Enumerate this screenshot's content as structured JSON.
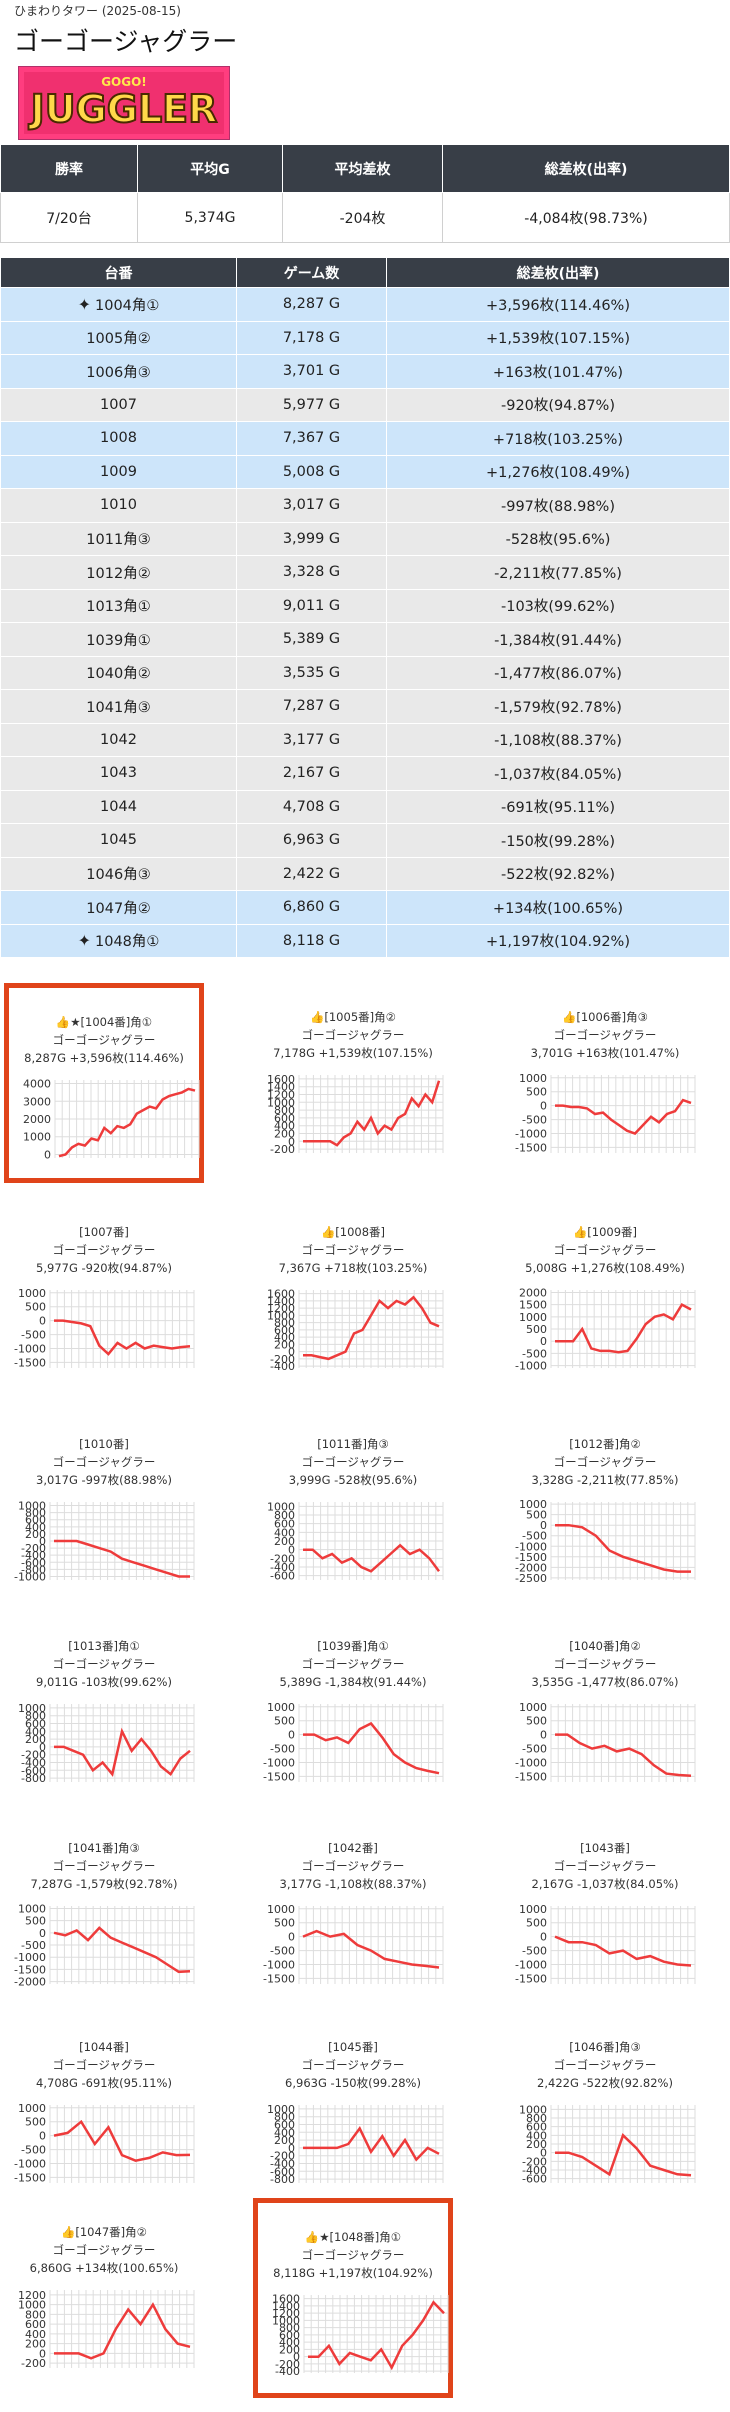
{
  "header": {
    "store_date": "ひまわりタワー (2025-08-15)",
    "title": "ゴーゴージャグラー",
    "logo_text": "JUGGLER",
    "logo_sub": "GOGO!"
  },
  "summary": {
    "headers": [
      "勝率",
      "平均G",
      "平均差枚",
      "総差枚(出率)"
    ],
    "values": [
      "7/20台",
      "5,374G",
      "-204枚",
      "-4,084枚(98.73%)"
    ]
  },
  "machines": {
    "headers": [
      "台番",
      "ゲーム数",
      "総差枚(出率)"
    ],
    "rows": [
      {
        "no": "1004角①",
        "games": "8,287 G",
        "diff": "+3,596枚(114.46%)",
        "plus": true,
        "star": true
      },
      {
        "no": "1005角②",
        "games": "7,178 G",
        "diff": "+1,539枚(107.15%)",
        "plus": true,
        "star": false
      },
      {
        "no": "1006角③",
        "games": "3,701 G",
        "diff": "+163枚(101.47%)",
        "plus": true,
        "star": false
      },
      {
        "no": "1007",
        "games": "5,977 G",
        "diff": "-920枚(94.87%)",
        "plus": false,
        "star": false
      },
      {
        "no": "1008",
        "games": "7,367 G",
        "diff": "+718枚(103.25%)",
        "plus": true,
        "star": false
      },
      {
        "no": "1009",
        "games": "5,008 G",
        "diff": "+1,276枚(108.49%)",
        "plus": true,
        "star": false
      },
      {
        "no": "1010",
        "games": "3,017 G",
        "diff": "-997枚(88.98%)",
        "plus": false,
        "star": false
      },
      {
        "no": "1011角③",
        "games": "3,999 G",
        "diff": "-528枚(95.6%)",
        "plus": false,
        "star": false
      },
      {
        "no": "1012角②",
        "games": "3,328 G",
        "diff": "-2,211枚(77.85%)",
        "plus": false,
        "star": false
      },
      {
        "no": "1013角①",
        "games": "9,011 G",
        "diff": "-103枚(99.62%)",
        "plus": false,
        "star": false
      },
      {
        "no": "1039角①",
        "games": "5,389 G",
        "diff": "-1,384枚(91.44%)",
        "plus": false,
        "star": false
      },
      {
        "no": "1040角②",
        "games": "3,535 G",
        "diff": "-1,477枚(86.07%)",
        "plus": false,
        "star": false
      },
      {
        "no": "1041角③",
        "games": "7,287 G",
        "diff": "-1,579枚(92.78%)",
        "plus": false,
        "star": false
      },
      {
        "no": "1042",
        "games": "3,177 G",
        "diff": "-1,108枚(88.37%)",
        "plus": false,
        "star": false
      },
      {
        "no": "1043",
        "games": "2,167 G",
        "diff": "-1,037枚(84.05%)",
        "plus": false,
        "star": false
      },
      {
        "no": "1044",
        "games": "4,708 G",
        "diff": "-691枚(95.11%)",
        "plus": false,
        "star": false
      },
      {
        "no": "1045",
        "games": "6,963 G",
        "diff": "-150枚(99.28%)",
        "plus": false,
        "star": false
      },
      {
        "no": "1046角③",
        "games": "2,422 G",
        "diff": "-522枚(92.82%)",
        "plus": false,
        "star": false
      },
      {
        "no": "1047角②",
        "games": "6,860 G",
        "diff": "+134枚(100.65%)",
        "plus": true,
        "star": false
      },
      {
        "no": "1048角①",
        "games": "8,118 G",
        "diff": "+1,197枚(104.92%)",
        "plus": true,
        "star": true
      }
    ]
  },
  "colors": {
    "header_bg": "#383e47",
    "plus_row": "#cde5fa",
    "minus_row": "#e9e9e9",
    "line": "#ee3b3b",
    "highlight": "#e0441a"
  },
  "chart_data": [
    {
      "type": "line",
      "title": "👍★[1004番]角①",
      "subtitle": "ゴーゴージャグラー",
      "stats": "8,287G +3,596枚(114.46%)",
      "yticks": [
        "4000",
        "3000",
        "2000",
        "1000",
        "0"
      ],
      "ylim": [
        -200,
        4200
      ],
      "values": [
        -100,
        0,
        400,
        600,
        500,
        900,
        800,
        1500,
        1200,
        1600,
        1500,
        1700,
        2300,
        2500,
        2700,
        2600,
        3100,
        3300,
        3400,
        3500,
        3700,
        3600
      ],
      "highlight": true
    },
    {
      "type": "line",
      "title": "👍[1005番]角②",
      "subtitle": "ゴーゴージャグラー",
      "stats": "7,178G +1,539枚(107.15%)",
      "yticks": [
        "1600",
        "1400",
        "1200",
        "1000",
        "800",
        "600",
        "400",
        "200",
        "0",
        "-200"
      ],
      "ylim": [
        -300,
        1700
      ],
      "values": [
        0,
        0,
        0,
        0,
        0,
        -100,
        100,
        200,
        500,
        300,
        600,
        200,
        400,
        300,
        600,
        700,
        1100,
        900,
        1200,
        1000,
        1550
      ],
      "highlight": false
    },
    {
      "type": "line",
      "title": "👍[1006番]角③",
      "subtitle": "ゴーゴージャグラー",
      "stats": "3,701G +163枚(101.47%)",
      "yticks": [
        "1000",
        "500",
        "0",
        "-500",
        "-1000",
        "-1500"
      ],
      "ylim": [
        -1700,
        1100
      ],
      "values": [
        0,
        0,
        -50,
        -50,
        -100,
        -300,
        -250,
        -500,
        -700,
        -900,
        -1000,
        -700,
        -400,
        -600,
        -300,
        -200,
        200,
        100
      ],
      "highlight": false
    },
    {
      "type": "line",
      "title": "[1007番]",
      "subtitle": "ゴーゴージャグラー",
      "stats": "5,977G -920枚(94.87%)",
      "yticks": [
        "1000",
        "500",
        "0",
        "-500",
        "-1000",
        "-1500"
      ],
      "ylim": [
        -1700,
        1100
      ],
      "values": [
        0,
        0,
        -50,
        -100,
        -200,
        -900,
        -1200,
        -800,
        -1000,
        -800,
        -1000,
        -900,
        -950,
        -1000,
        -950,
        -920
      ],
      "highlight": false
    },
    {
      "type": "line",
      "title": "👍[1008番]",
      "subtitle": "ゴーゴージャグラー",
      "stats": "7,367G +718枚(103.25%)",
      "yticks": [
        "1600",
        "1400",
        "1200",
        "1000",
        "800",
        "600",
        "400",
        "200",
        "0",
        "-200",
        "-400"
      ],
      "ylim": [
        -450,
        1700
      ],
      "values": [
        -100,
        -100,
        -150,
        -200,
        -100,
        0,
        500,
        600,
        1000,
        1400,
        1200,
        1400,
        1300,
        1500,
        1200,
        800,
        700
      ],
      "highlight": false
    },
    {
      "type": "line",
      "title": "👍[1009番]",
      "subtitle": "ゴーゴージャグラー",
      "stats": "5,008G +1,276枚(108.49%)",
      "yticks": [
        "2000",
        "1500",
        "1000",
        "500",
        "0",
        "-500",
        "-1000"
      ],
      "ylim": [
        -1100,
        2100
      ],
      "values": [
        0,
        0,
        0,
        500,
        -300,
        -400,
        -400,
        -450,
        -400,
        100,
        700,
        1000,
        1100,
        900,
        1500,
        1300
      ],
      "highlight": false
    },
    {
      "type": "line",
      "title": "[1010番]",
      "subtitle": "ゴーゴージャグラー",
      "stats": "3,017G -997枚(88.98%)",
      "yticks": [
        "1000",
        "800",
        "600",
        "400",
        "200",
        "0",
        "-200",
        "-400",
        "-600",
        "-800",
        "-1000"
      ],
      "ylim": [
        -1100,
        1100
      ],
      "values": [
        0,
        0,
        0,
        -100,
        -200,
        -300,
        -500,
        -600,
        -700,
        -800,
        -900,
        -1000,
        -1000
      ],
      "highlight": false
    },
    {
      "type": "line",
      "title": "[1011番]角③",
      "subtitle": "ゴーゴージャグラー",
      "stats": "3,999G -528枚(95.6%)",
      "yticks": [
        "1000",
        "800",
        "600",
        "400",
        "200",
        "0",
        "-200",
        "-400",
        "-600"
      ],
      "ylim": [
        -700,
        1100
      ],
      "values": [
        0,
        0,
        -200,
        -100,
        -300,
        -200,
        -400,
        -500,
        -300,
        -100,
        100,
        -100,
        0,
        -200,
        -500
      ],
      "highlight": false
    },
    {
      "type": "line",
      "title": "[1012番]角②",
      "subtitle": "ゴーゴージャグラー",
      "stats": "3,328G -2,211枚(77.85%)",
      "yticks": [
        "1000",
        "500",
        "0",
        "-500",
        "-1000",
        "-1500",
        "-2000",
        "-2500"
      ],
      "ylim": [
        -2600,
        1100
      ],
      "values": [
        0,
        0,
        -100,
        -500,
        -1200,
        -1500,
        -1700,
        -1900,
        -2100,
        -2200,
        -2200
      ],
      "highlight": false
    },
    {
      "type": "line",
      "title": "[1013番]角①",
      "subtitle": "ゴーゴージャグラー",
      "stats": "9,011G -103枚(99.62%)",
      "yticks": [
        "1000",
        "800",
        "600",
        "400",
        "200",
        "0",
        "-200",
        "-400",
        "-600",
        "-800"
      ],
      "ylim": [
        -900,
        1100
      ],
      "values": [
        0,
        0,
        -100,
        -200,
        -600,
        -400,
        -700,
        400,
        -100,
        200,
        -100,
        -500,
        -700,
        -300,
        -100
      ],
      "highlight": false
    },
    {
      "type": "line",
      "title": "[1039番]角①",
      "subtitle": "ゴーゴージャグラー",
      "stats": "5,389G -1,384枚(91.44%)",
      "yticks": [
        "1000",
        "500",
        "0",
        "-500",
        "-1000",
        "-1500"
      ],
      "ylim": [
        -1700,
        1100
      ],
      "values": [
        0,
        0,
        -200,
        -100,
        -300,
        200,
        400,
        -100,
        -700,
        -1000,
        -1200,
        -1300,
        -1384
      ],
      "highlight": false
    },
    {
      "type": "line",
      "title": "[1040番]角②",
      "subtitle": "ゴーゴージャグラー",
      "stats": "3,535G -1,477枚(86.07%)",
      "yticks": [
        "1000",
        "500",
        "0",
        "-500",
        "-1000",
        "-1500"
      ],
      "ylim": [
        -1700,
        1100
      ],
      "values": [
        0,
        0,
        -300,
        -500,
        -400,
        -600,
        -500,
        -700,
        -1100,
        -1400,
        -1450,
        -1477
      ],
      "highlight": false
    },
    {
      "type": "line",
      "title": "[1041番]角③",
      "subtitle": "ゴーゴージャグラー",
      "stats": "7,287G -1,579枚(92.78%)",
      "yticks": [
        "1000",
        "500",
        "0",
        "-500",
        "-1000",
        "-1500",
        "-2000"
      ],
      "ylim": [
        -2100,
        1100
      ],
      "values": [
        0,
        -100,
        100,
        -300,
        200,
        -200,
        -400,
        -600,
        -800,
        -1000,
        -1300,
        -1600,
        -1579
      ],
      "highlight": false
    },
    {
      "type": "line",
      "title": "[1042番]",
      "subtitle": "ゴーゴージャグラー",
      "stats": "3,177G -1,108枚(88.37%)",
      "yticks": [
        "1000",
        "500",
        "0",
        "-500",
        "-1000",
        "-1500"
      ],
      "ylim": [
        -1700,
        1100
      ],
      "values": [
        0,
        200,
        0,
        100,
        -300,
        -500,
        -800,
        -900,
        -1000,
        -1050,
        -1108
      ],
      "highlight": false
    },
    {
      "type": "line",
      "title": "[1043番]",
      "subtitle": "ゴーゴージャグラー",
      "stats": "2,167G -1,037枚(84.05%)",
      "yticks": [
        "1000",
        "500",
        "0",
        "-500",
        "-1000",
        "-1500"
      ],
      "ylim": [
        -1700,
        1100
      ],
      "values": [
        0,
        -200,
        -200,
        -300,
        -600,
        -500,
        -800,
        -700,
        -900,
        -1000,
        -1037
      ],
      "highlight": false
    },
    {
      "type": "line",
      "title": "[1044番]",
      "subtitle": "ゴーゴージャグラー",
      "stats": "4,708G -691枚(95.11%)",
      "yticks": [
        "1000",
        "500",
        "0",
        "-500",
        "-1000",
        "-1500"
      ],
      "ylim": [
        -1700,
        1100
      ],
      "values": [
        0,
        100,
        500,
        -300,
        300,
        -700,
        -900,
        -800,
        -600,
        -700,
        -691
      ],
      "highlight": false
    },
    {
      "type": "line",
      "title": "[1045番]",
      "subtitle": "ゴーゴージャグラー",
      "stats": "6,963G -150枚(99.28%)",
      "yticks": [
        "1000",
        "800",
        "600",
        "400",
        "200",
        "0",
        "-200",
        "-400",
        "-600",
        "-800"
      ],
      "ylim": [
        -900,
        1100
      ],
      "values": [
        0,
        0,
        0,
        0,
        100,
        500,
        -100,
        300,
        -200,
        200,
        -300,
        0,
        -150
      ],
      "highlight": false
    },
    {
      "type": "line",
      "title": "[1046番]角③",
      "subtitle": "ゴーゴージャグラー",
      "stats": "2,422G -522枚(92.82%)",
      "yticks": [
        "1000",
        "800",
        "600",
        "400",
        "200",
        "0",
        "-200",
        "-400",
        "-600"
      ],
      "ylim": [
        -700,
        1100
      ],
      "values": [
        0,
        0,
        -100,
        -300,
        -500,
        400,
        100,
        -300,
        -400,
        -500,
        -522
      ],
      "highlight": false
    },
    {
      "type": "line",
      "title": "👍[1047番]角②",
      "subtitle": "ゴーゴージャグラー",
      "stats": "6,860G +134枚(100.65%)",
      "yticks": [
        "1200",
        "1000",
        "800",
        "600",
        "400",
        "200",
        "0",
        "-200"
      ],
      "ylim": [
        -300,
        1300
      ],
      "values": [
        0,
        0,
        0,
        -100,
        0,
        500,
        900,
        600,
        1000,
        500,
        200,
        134
      ],
      "highlight": false
    },
    {
      "type": "line",
      "title": "👍★[1048番]角①",
      "subtitle": "ゴーゴージャグラー",
      "stats": "8,118G +1,197枚(104.92%)",
      "yticks": [
        "1600",
        "1400",
        "1200",
        "1000",
        "800",
        "600",
        "400",
        "200",
        "0",
        "-200",
        "-400"
      ],
      "ylim": [
        -450,
        1700
      ],
      "values": [
        0,
        0,
        300,
        -200,
        100,
        0,
        -100,
        200,
        -300,
        300,
        600,
        1000,
        1500,
        1197
      ],
      "highlight": true
    }
  ]
}
